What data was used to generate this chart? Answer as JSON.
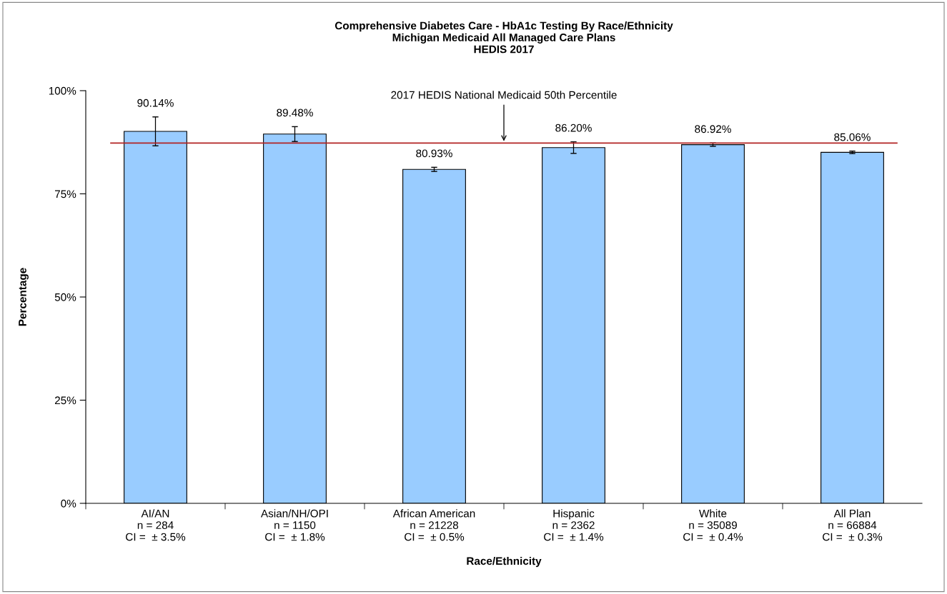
{
  "chart_data": {
    "type": "bar",
    "title": "Comprehensive Diabetes Care - HbA1c Testing By Race/Ethnicity\nMichigan Medicaid All Managed Care Plans\nHEDIS 2017",
    "xlabel": "Race/Ethnicity",
    "ylabel": "Percentage",
    "categories": [
      "AI/AN\nn = 284\nCI =  ± 3.5%",
      "Asian/NH/OPI\nn = 1150\nCI =  ± 1.8%",
      "African American\nn = 21228\nCI =  ± 0.5%",
      "Hispanic\nn = 2362\nCI =  ± 1.4%",
      "White\nn = 35089\nCI =  ± 0.4%",
      "All Plan\nn = 66884\nCI =  ± 0.3%"
    ],
    "values": [
      90.14,
      89.48,
      80.93,
      86.2,
      86.92,
      85.06
    ],
    "value_labels": [
      "90.14%",
      "89.48%",
      "80.93%",
      "86.20%",
      "86.92%",
      "85.06%"
    ],
    "errors": [
      3.5,
      1.8,
      0.5,
      1.4,
      0.4,
      0.3
    ],
    "color": "#99ccff",
    "ylim": [
      0,
      100
    ],
    "yticks": [
      {
        "value": 0,
        "label": "0%"
      },
      {
        "value": 25,
        "label": "25%"
      },
      {
        "value": 50,
        "label": "50%"
      },
      {
        "value": 75,
        "label": "75%"
      },
      {
        "value": 100,
        "label": "100%"
      }
    ],
    "ref_lines": [
      {
        "axis": "y",
        "value": 87.3,
        "label": "2017 HEDIS National Medicaid 50th Percentile",
        "color": "#b22222"
      }
    ],
    "grid": false,
    "legend": false
  }
}
